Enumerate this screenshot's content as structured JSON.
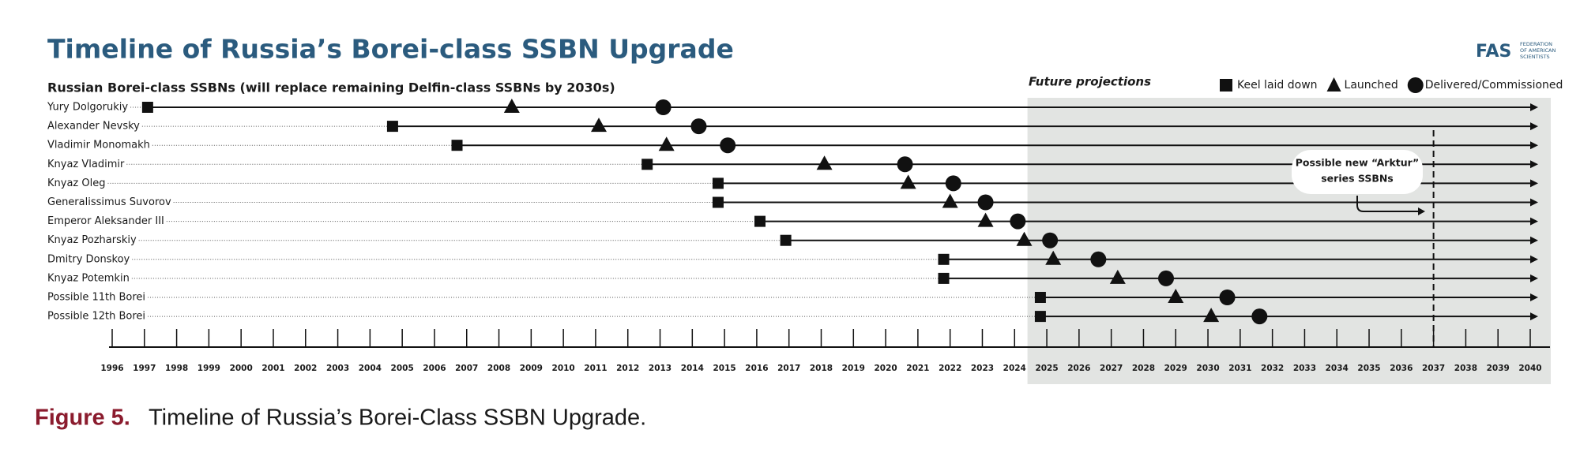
{
  "header": {
    "title": "Timeline of Russia’s Borei-class SSBN Upgrade",
    "logo": "FAS",
    "logo_sub": [
      "FEDERATION",
      "OF AMERICAN",
      "SCIENTISTS"
    ]
  },
  "chart_data": {
    "type": "timeline",
    "subtitle": "Russian Borei-class SSBNs (will replace remaining Delfin-class SSBNs by 2030s)",
    "categories": [
      "Yury Dolgorukiy",
      "Alexander Nevsky",
      "Vladimir Monomakh",
      "Knyaz Vladimir",
      "Knyaz Oleg",
      "Generalissimus Suvorov",
      "Emperor Aleksander III",
      "Knyaz Pozharskiy",
      "Dmitry Donskoy",
      "Knyaz Potemkin",
      "Possible 11th Borei",
      "Possible 12th Borei"
    ],
    "series": [
      {
        "name": "Keel laid down",
        "marker": "square",
        "color": "#111111",
        "values": [
          1997.1,
          2004.7,
          2006.7,
          2012.6,
          2014.8,
          2014.8,
          2016.1,
          2016.9,
          2021.8,
          2021.8,
          2024.8,
          2024.8
        ]
      },
      {
        "name": "Launched",
        "marker": "triangle",
        "color": "#111111",
        "values": [
          2008.4,
          2011.1,
          2013.2,
          2018.1,
          2020.7,
          2022.0,
          2023.1,
          2024.3,
          2025.2,
          2027.2,
          2029.0,
          2030.1
        ]
      },
      {
        "name": "Delivered/Commissioned",
        "marker": "circle",
        "color": "#111111",
        "values": [
          2013.1,
          2014.2,
          2015.1,
          2020.6,
          2022.1,
          2023.1,
          2024.1,
          2025.1,
          2026.6,
          2028.7,
          2030.6,
          2031.6
        ]
      }
    ],
    "xlim": [
      1996,
      2040
    ],
    "xticks": [
      1996,
      1997,
      1998,
      1999,
      2000,
      2001,
      2002,
      2003,
      2004,
      2005,
      2006,
      2007,
      2008,
      2009,
      2010,
      2011,
      2012,
      2013,
      2014,
      2015,
      2016,
      2017,
      2018,
      2019,
      2020,
      2021,
      2022,
      2023,
      2024,
      2025,
      2026,
      2027,
      2028,
      2029,
      2030,
      2031,
      2032,
      2033,
      2034,
      2035,
      2036,
      2037,
      2038,
      2039,
      2040
    ],
    "projection_start": 2024.4,
    "projection_label": "Future projections",
    "projection_color": "#e2e4e2",
    "marker_line": 2037,
    "annotation": [
      "Possible new “Arktur”",
      "series SSBNs"
    ]
  },
  "caption": {
    "label": "Figure 5.",
    "text": "Timeline of Russia’s Borei-Class SSBN Upgrade."
  }
}
